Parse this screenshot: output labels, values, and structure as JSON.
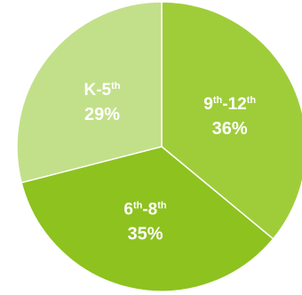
{
  "chart_data": {
    "type": "pie",
    "slices": [
      {
        "label_base1": "9",
        "label_sup1": "th",
        "label_base2": "-12",
        "label_sup2": "th",
        "value": 36,
        "value_label": "36%",
        "color": "#9fcd3a"
      },
      {
        "label_base1": "6",
        "label_sup1": "th",
        "label_base2": "-8",
        "label_sup2": "th",
        "value": 35,
        "value_label": "35%",
        "color": "#8dc21f"
      },
      {
        "label_base1": "K-5",
        "label_sup1": "th",
        "label_base2": "",
        "label_sup2": "",
        "value": 29,
        "value_label": "29%",
        "color": "#c2e08a"
      }
    ],
    "start_angle_deg": -90,
    "direction": "clockwise"
  }
}
